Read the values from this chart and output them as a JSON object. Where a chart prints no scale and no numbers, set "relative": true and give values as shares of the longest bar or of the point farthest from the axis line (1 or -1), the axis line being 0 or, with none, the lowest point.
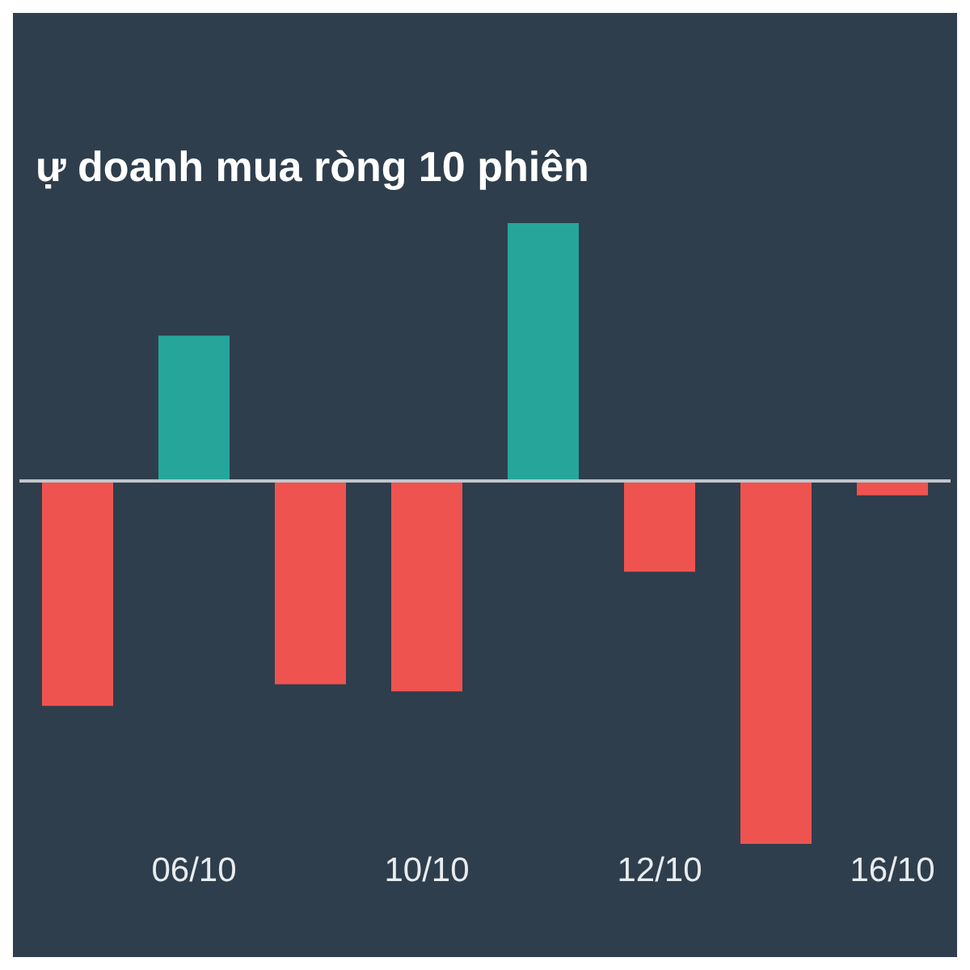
{
  "chart_data": {
    "type": "bar",
    "title": "ự doanh mua ròng 10 phiên",
    "relative": true,
    "categories": [
      null,
      "06/10",
      null,
      "10/10",
      null,
      "12/10",
      null,
      "16/10"
    ],
    "values": [
      -0.62,
      0.4,
      -0.56,
      -0.58,
      0.71,
      -0.25,
      -1,
      -0.04
    ],
    "colors": [
      "#ef5350",
      "#26a69a",
      "#ef5350",
      "#ef5350",
      "#26a69a",
      "#ef5350",
      "#ef5350",
      "#ef5350"
    ]
  }
}
